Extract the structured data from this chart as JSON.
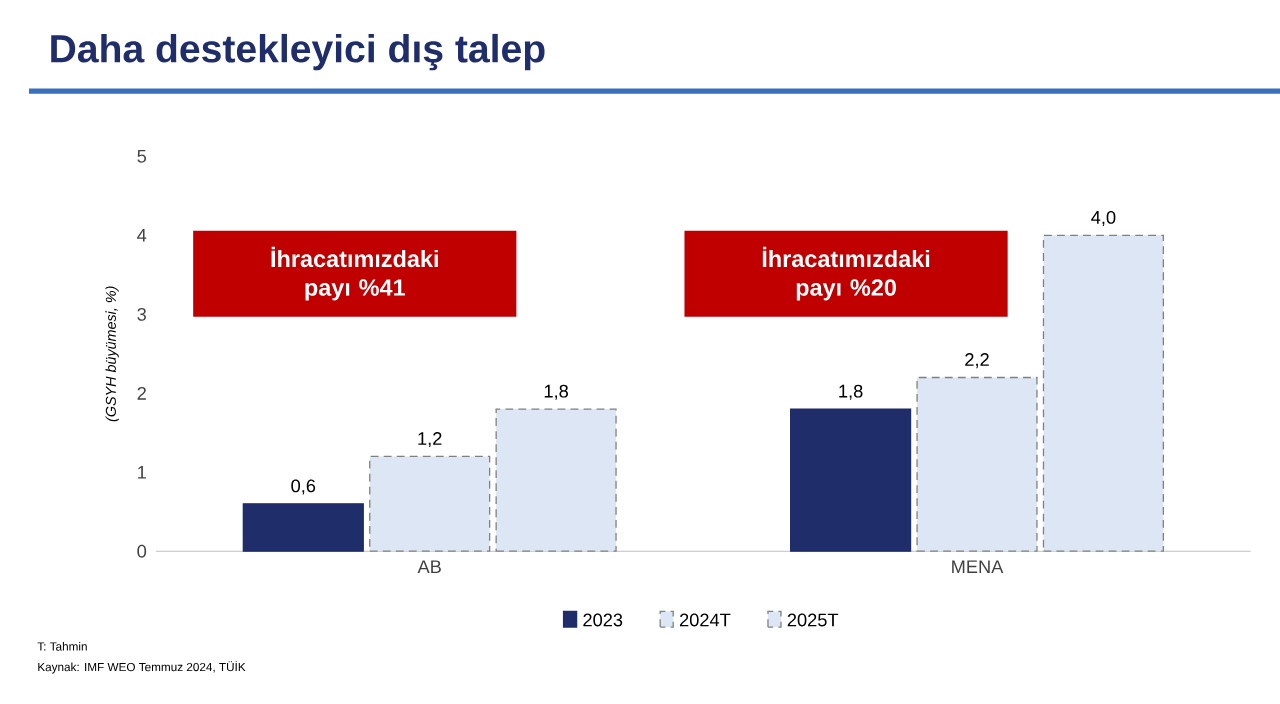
{
  "chart_data": {
    "type": "bar",
    "title": "Daha destekleyici dış talep",
    "categories": [
      "AB",
      "MENA"
    ],
    "ylabel": "(GSYH büyümesi, %)",
    "ylim": [
      0,
      5
    ],
    "yticks": [
      0,
      1,
      2,
      3,
      4,
      5
    ],
    "series": [
      {
        "name": "2023",
        "color": "#1f2d6b",
        "line_style": "solid",
        "values": [
          0.6,
          1.8
        ],
        "value_labels": [
          "0,6",
          "1,8"
        ]
      },
      {
        "name": "2024T",
        "color": "#dce6f4",
        "line_style": "dashed",
        "values": [
          1.2,
          2.2
        ],
        "value_labels": [
          "1,2",
          "2,2"
        ]
      },
      {
        "name": "2025T",
        "color": "#dce6f4",
        "line_style": "dashed",
        "values": [
          1.8,
          4.0
        ],
        "value_labels": [
          "1,8",
          "4,0"
        ]
      }
    ],
    "legend": "bottom",
    "grid": false,
    "annotations": [
      "İhracatımızdaki payı %41",
      "İhracatımızdaki payı %20",
      "T: Tahmin",
      "Kaynak: IMF WEO Temmuz 2024, TÜİK"
    ]
  }
}
